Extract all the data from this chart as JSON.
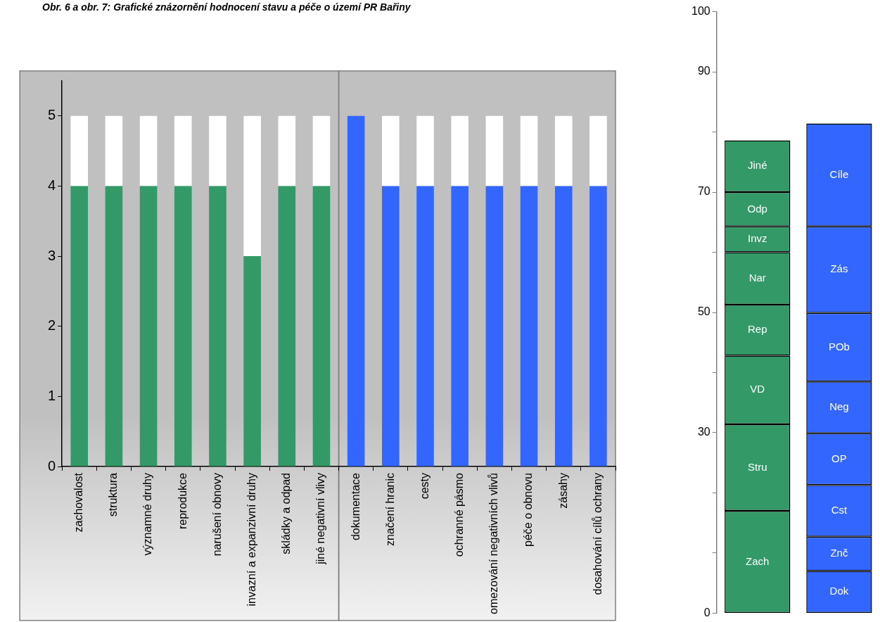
{
  "chart_data": [
    {
      "type": "bar",
      "title": "Obr. 6 a obr. 7: Grafické znázornění hodnocení stavu a péče o území PR Bařiny",
      "stacked": true,
      "legend": false,
      "categories": [
        "zachovalost",
        "struktura",
        "významné druhy",
        "reprodukce",
        "narušení obnovy",
        "invazní a expanzivní druhy",
        "skládky a odpad",
        "jiné negativní vlivy",
        "dokumentace",
        "značení hranic",
        "cesty",
        "ochranné pásmo",
        "omezování negativních vlivů",
        "péče o obnovu",
        "zásahy",
        "dosahování cílů ochrany"
      ],
      "ylim": [
        0,
        5.5
      ],
      "yticks": [
        0,
        1,
        2,
        3,
        4,
        5
      ],
      "series": [
        {
          "color": "#339966",
          "values": [
            4,
            4,
            4,
            4,
            4,
            3,
            4,
            4,
            null,
            null,
            null,
            null,
            null,
            null,
            null,
            null
          ]
        },
        {
          "color": "#3366ff",
          "values": [
            null,
            null,
            null,
            null,
            null,
            null,
            null,
            null,
            5,
            4,
            4,
            4,
            4,
            4,
            4,
            4
          ]
        },
        {
          "color": "#ffffff",
          "values": [
            1,
            1,
            1,
            1,
            1,
            2,
            1,
            1,
            null,
            1,
            1,
            1,
            1,
            1,
            1,
            1
          ]
        }
      ]
    },
    {
      "type": "bar",
      "stacked": true,
      "legend": false,
      "tick_labels": "y",
      "categories": [
        null,
        null
      ],
      "ylim": [
        0,
        100
      ],
      "yticks": [
        0,
        {
          "value": 10,
          "label": null
        },
        {
          "value": 20,
          "label": null
        },
        30,
        {
          "value": 40,
          "label": null
        },
        50,
        {
          "value": 60,
          "label": null
        },
        70,
        {
          "value": 80,
          "label": null
        },
        90,
        100
      ],
      "series": [
        {
          "name": "Zach",
          "color": "#339966",
          "values": [
            17.0,
            null
          ]
        },
        {
          "name": "Stru",
          "color": "#339966",
          "values": [
            14.4,
            null
          ]
        },
        {
          "name": "VD",
          "color": "#339966",
          "values": [
            11.4,
            null
          ]
        },
        {
          "name": "Rep",
          "color": "#339966",
          "values": [
            8.5,
            null
          ]
        },
        {
          "name": "Nar",
          "color": "#339966",
          "values": [
            8.7,
            null
          ]
        },
        {
          "name": "Invz",
          "color": "#339966",
          "values": [
            4.3,
            null
          ]
        },
        {
          "name": "Odp",
          "color": "#339966",
          "values": [
            5.7,
            null
          ]
        },
        {
          "name": "Jiné",
          "color": "#339966",
          "values": [
            8.6,
            null
          ]
        },
        {
          "name": "Dok",
          "color": "#3366ff",
          "values": [
            null,
            7.0
          ]
        },
        {
          "name": "Znč",
          "color": "#3366ff",
          "values": [
            null,
            5.7
          ]
        },
        {
          "name": "Cst",
          "color": "#3366ff",
          "values": [
            null,
            8.6
          ]
        },
        {
          "name": "OP",
          "color": "#3366ff",
          "values": [
            null,
            8.6
          ]
        },
        {
          "name": "Neg",
          "color": "#3366ff",
          "values": [
            null,
            8.6
          ]
        },
        {
          "name": "POb",
          "color": "#3366ff",
          "values": [
            null,
            11.4
          ]
        },
        {
          "name": "Zás",
          "color": "#3366ff",
          "values": [
            null,
            14.4
          ]
        },
        {
          "name": "Cíle",
          "color": "#3366ff",
          "values": [
            null,
            17.1
          ]
        }
      ]
    }
  ]
}
